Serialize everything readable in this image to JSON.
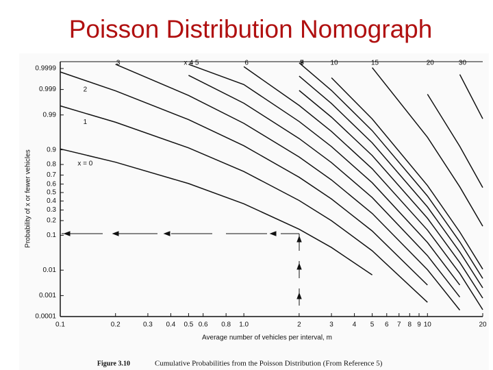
{
  "chart_data": {
    "type": "line",
    "title": "Poisson Distribution Nomograph",
    "y_label": "Probability of x or fewer vehicles",
    "x_label": "Average number of vehicles per interval, m",
    "caption_label": "Figure 3.10",
    "caption_text": "Cumulative Probabilities from the Poisson Distribution (From Reference 5)",
    "x_scale": "log",
    "y_scale": "probability",
    "grid": false,
    "color": "#111111",
    "xlim": [
      0.1,
      20
    ],
    "ylim": [
      0.0001,
      0.9999
    ],
    "xticks": [
      0.1,
      0.2,
      0.3,
      0.4,
      0.5,
      0.6,
      0.8,
      {
        "value": 1,
        "label": "1.0"
      },
      2,
      3,
      4,
      5,
      6,
      7,
      8,
      9,
      10,
      20
    ],
    "yticks": [
      0.0001,
      0.001,
      0.01,
      0.1,
      0.2,
      0.3,
      0.4,
      0.5,
      0.6,
      0.7,
      0.8,
      0.9,
      0.99,
      0.999,
      0.9999
    ],
    "x": [
      0.1,
      0.2,
      0.5,
      1,
      2,
      3,
      5,
      10,
      15,
      20
    ],
    "series": [
      {
        "name": "x = 0",
        "values": [
          0.9048,
          0.8187,
          0.6065,
          0.3679,
          0.1353,
          0.0498,
          0.00674,
          null,
          null,
          null
        ]
      },
      {
        "name": "1",
        "values": [
          0.99532,
          0.98248,
          0.9098,
          0.7358,
          0.406,
          0.1991,
          0.0404,
          0.000499,
          null,
          null
        ]
      },
      {
        "name": "2",
        "values": [
          0.99985,
          0.99885,
          0.9856,
          0.9197,
          0.6767,
          0.4232,
          0.1247,
          0.00277,
          null,
          null
        ]
      },
      {
        "name": "3",
        "values": [
          null,
          0.99994,
          0.9982,
          0.981,
          0.8571,
          0.6472,
          0.265,
          0.01034,
          0.000211,
          null
        ]
      },
      {
        "name": "4",
        "values": [
          null,
          null,
          0.99978,
          0.9963,
          0.9473,
          0.8153,
          0.4405,
          0.02925,
          0.000857,
          null
        ]
      },
      {
        "name": "x = 5",
        "values": [
          null,
          null,
          0.99994,
          0.9994,
          0.9834,
          0.9161,
          0.616,
          0.06709,
          0.00279,
          null
        ]
      },
      {
        "name": "6",
        "values": [
          null,
          null,
          null,
          0.99992,
          0.9955,
          0.9665,
          0.7622,
          0.1301,
          0.00763,
          0.000221
        ]
      },
      {
        "name": "7",
        "values": [
          null,
          null,
          null,
          null,
          0.9989,
          0.9881,
          0.8666,
          0.2202,
          0.018,
          0.000774
        ]
      },
      {
        "name": "8",
        "values": [
          null,
          null,
          null,
          null,
          0.99976,
          0.9962,
          0.9319,
          0.3328,
          0.03745,
          0.00213
        ]
      },
      {
        "name": "9",
        "values": [
          null,
          null,
          null,
          null,
          0.99995,
          0.9989,
          0.9682,
          0.4579,
          0.06985,
          0.00499
        ]
      },
      {
        "name": "10",
        "values": [
          null,
          null,
          null,
          null,
          null,
          0.99971,
          0.9863,
          0.583,
          0.1185,
          0.01081
        ]
      },
      {
        "name": "15",
        "values": [
          null,
          null,
          null,
          null,
          null,
          null,
          0.99991,
          0.9513,
          0.5681,
          0.1565
        ]
      },
      {
        "name": "20",
        "values": [
          null,
          null,
          null,
          null,
          null,
          null,
          null,
          0.9984,
          0.917,
          0.5591
        ]
      },
      {
        "name": "30",
        "values": [
          null,
          null,
          null,
          null,
          null,
          null,
          null,
          null,
          0.9998,
          0.9865
        ]
      }
    ]
  }
}
